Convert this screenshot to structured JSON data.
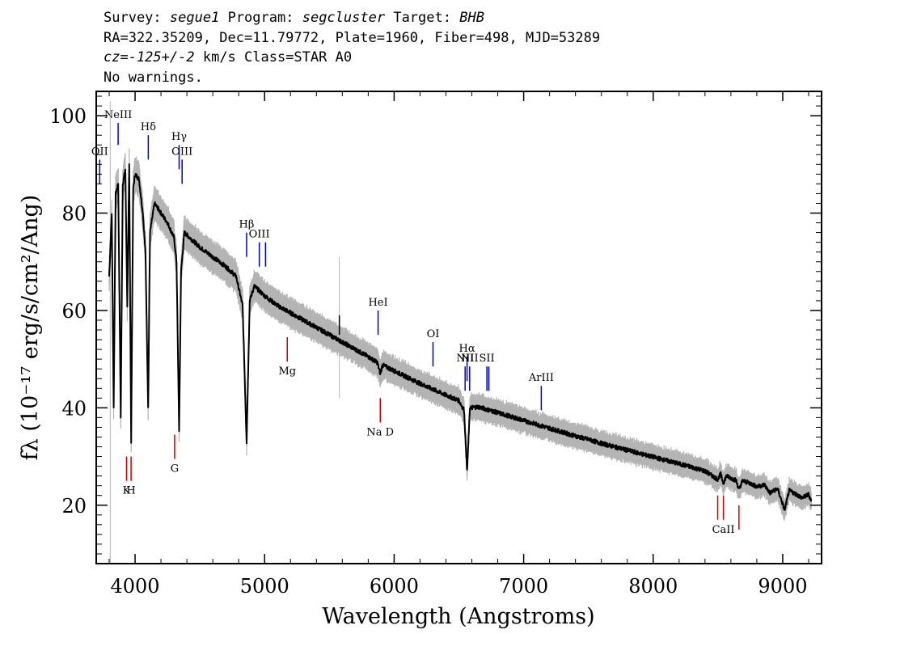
{
  "header": {
    "line1": {
      "survey_label": "Survey:",
      "survey": "segue1",
      "program_label": "Program:",
      "program": "segcluster",
      "target_label": "Target:",
      "target": "BHB"
    },
    "line2": "RA=322.35209, Dec=11.79772, Plate=1960, Fiber=498, MJD=53289",
    "line3": {
      "cz": "cz=-125+/-2",
      "unit_class": "km/s Class=STAR A0"
    },
    "line4": "No warnings."
  },
  "chart_data": {
    "type": "line",
    "xlabel": "Wavelength (Angstroms)",
    "ylabel": "fλ (10⁻¹⁷ erg/s/cm²/Ang)",
    "xlim": [
      3700,
      9300
    ],
    "ylim": [
      8,
      105
    ],
    "xticks": [
      4000,
      5000,
      6000,
      7000,
      8000,
      9000
    ],
    "yticks": [
      20,
      40,
      60,
      80,
      100
    ],
    "grid": false,
    "series": [
      {
        "color": "#000000",
        "error_band_color": "#b4b4b4",
        "points": [
          [
            3800,
            67
          ],
          [
            3820,
            80
          ],
          [
            3835,
            40
          ],
          [
            3850,
            84
          ],
          [
            3870,
            86
          ],
          [
            3889,
            38
          ],
          [
            3905,
            86
          ],
          [
            3925,
            89
          ],
          [
            3940,
            61
          ],
          [
            3955,
            90
          ],
          [
            3970,
            33
          ],
          [
            3985,
            85
          ],
          [
            4000,
            88
          ],
          [
            4030,
            87
          ],
          [
            4060,
            80
          ],
          [
            4080,
            72
          ],
          [
            4101,
            40
          ],
          [
            4115,
            76
          ],
          [
            4150,
            82
          ],
          [
            4200,
            80
          ],
          [
            4250,
            78
          ],
          [
            4300,
            75
          ],
          [
            4320,
            70
          ],
          [
            4340,
            35
          ],
          [
            4355,
            68
          ],
          [
            4380,
            76
          ],
          [
            4420,
            75
          ],
          [
            4500,
            73
          ],
          [
            4600,
            71
          ],
          [
            4700,
            69
          ],
          [
            4780,
            67
          ],
          [
            4830,
            61
          ],
          [
            4861,
            33
          ],
          [
            4885,
            62
          ],
          [
            4920,
            65
          ],
          [
            5000,
            63
          ],
          [
            5100,
            61
          ],
          [
            5200,
            59.5
          ],
          [
            5300,
            58
          ],
          [
            5400,
            56.5
          ],
          [
            5500,
            55
          ],
          [
            5600,
            53.5
          ],
          [
            5700,
            52
          ],
          [
            5800,
            50.5
          ],
          [
            5870,
            49.3
          ],
          [
            5893,
            47
          ],
          [
            5910,
            48.8
          ],
          [
            6000,
            47.6
          ],
          [
            6100,
            46.3
          ],
          [
            6200,
            45
          ],
          [
            6300,
            43.8
          ],
          [
            6400,
            42.6
          ],
          [
            6500,
            41.5
          ],
          [
            6540,
            39.5
          ],
          [
            6563,
            27
          ],
          [
            6585,
            40
          ],
          [
            6650,
            40.2
          ],
          [
            6800,
            39
          ],
          [
            6900,
            38.2
          ],
          [
            7000,
            37.4
          ],
          [
            7100,
            36.6
          ],
          [
            7200,
            35.8
          ],
          [
            7300,
            35
          ],
          [
            7400,
            34.2
          ],
          [
            7500,
            33.5
          ],
          [
            7600,
            32.7
          ],
          [
            7700,
            32
          ],
          [
            7800,
            31.3
          ],
          [
            7900,
            30.6
          ],
          [
            8000,
            29.9
          ],
          [
            8100,
            29.2
          ],
          [
            8200,
            28.5
          ],
          [
            8300,
            27.8
          ],
          [
            8400,
            27
          ],
          [
            8498,
            25.3
          ],
          [
            8520,
            26.4
          ],
          [
            8542,
            24.5
          ],
          [
            8565,
            26
          ],
          [
            8640,
            25.1
          ],
          [
            8662,
            23.2
          ],
          [
            8690,
            25
          ],
          [
            8750,
            24.5
          ],
          [
            8800,
            23.8
          ],
          [
            8860,
            24.2
          ],
          [
            8900,
            22.5
          ],
          [
            8960,
            23.4
          ],
          [
            9015,
            19
          ],
          [
            9050,
            23
          ],
          [
            9100,
            22.3
          ],
          [
            9150,
            21.5
          ],
          [
            9200,
            22.2
          ],
          [
            9220,
            21
          ]
        ]
      }
    ],
    "emission_lines": [
      {
        "label": "OII",
        "wave": 3727,
        "y1": 91,
        "y2": 86,
        "color": "#0000cc"
      },
      {
        "label": "NeIII",
        "wave": 3869,
        "y1": 98.5,
        "y2": 94,
        "color": "#0000cc"
      },
      {
        "label": "Hδ",
        "wave": 4102,
        "y1": 96,
        "y2": 91,
        "color": "#0000cc"
      },
      {
        "label": "Hγ",
        "wave": 4340,
        "y1": 94,
        "y2": 89,
        "color": "#0000cc"
      },
      {
        "label": "OIII",
        "wave": 4363,
        "y1": 91,
        "y2": 86,
        "color": "#0000cc"
      },
      {
        "label": "Hβ",
        "wave": 4861,
        "y1": 76,
        "y2": 71,
        "color": "#0000cc"
      },
      {
        "label": "OIII",
        "wave": 4959,
        "y1": 74,
        "y2": 69,
        "color": "#0000cc"
      },
      {
        "label": "",
        "wave": 5007,
        "y1": 74,
        "y2": 69,
        "color": "#0000cc"
      },
      {
        "label": "HeI",
        "wave": 5876,
        "y1": 60,
        "y2": 55,
        "color": "#0000cc"
      },
      {
        "label": "OI",
        "wave": 6300,
        "y1": 53.5,
        "y2": 48.5,
        "color": "#0000cc"
      },
      {
        "label": "NII",
        "wave": 6548,
        "y1": 48.5,
        "y2": 43.5,
        "color": "#0000cc"
      },
      {
        "label": "Hα",
        "wave": 6563,
        "y1": 50.5,
        "y2": 45.5,
        "color": "#0000cc"
      },
      {
        "label": "NII",
        "wave": 6583,
        "y1": 48.5,
        "y2": 43.5,
        "color": "#0000cc"
      },
      {
        "label": "SII",
        "wave": 6716,
        "y1": 48.5,
        "y2": 43.5,
        "color": "#0000cc"
      },
      {
        "label": "",
        "wave": 6731,
        "y1": 48.5,
        "y2": 43.5,
        "color": "#0000cc"
      },
      {
        "label": "ArIII",
        "wave": 7136,
        "y1": 44.5,
        "y2": 39.5,
        "color": "#0000cc"
      }
    ],
    "absorption_lines": [
      {
        "label": "K",
        "wave": 3934,
        "y1": 30,
        "y2": 25,
        "color": "#cc0000"
      },
      {
        "label": "H",
        "wave": 3969,
        "y1": 30,
        "y2": 25,
        "color": "#cc0000"
      },
      {
        "label": "G",
        "wave": 4305,
        "y1": 34.5,
        "y2": 29.5,
        "color": "#cc0000"
      },
      {
        "label": "Mg",
        "wave": 5175,
        "y1": 54.5,
        "y2": 49.5,
        "color": "#cc0000"
      },
      {
        "label": "Na D",
        "wave": 5893,
        "y1": 42,
        "y2": 37,
        "color": "#cc0000"
      },
      {
        "label": "",
        "wave": 8498,
        "y1": 22,
        "y2": 17,
        "color": "#cc0000"
      },
      {
        "label": "CaII",
        "wave": 8542,
        "y1": 22,
        "y2": 17,
        "color": "#cc0000"
      },
      {
        "label": "",
        "wave": 8662,
        "y1": 20,
        "y2": 15,
        "color": "#cc0000"
      }
    ]
  }
}
